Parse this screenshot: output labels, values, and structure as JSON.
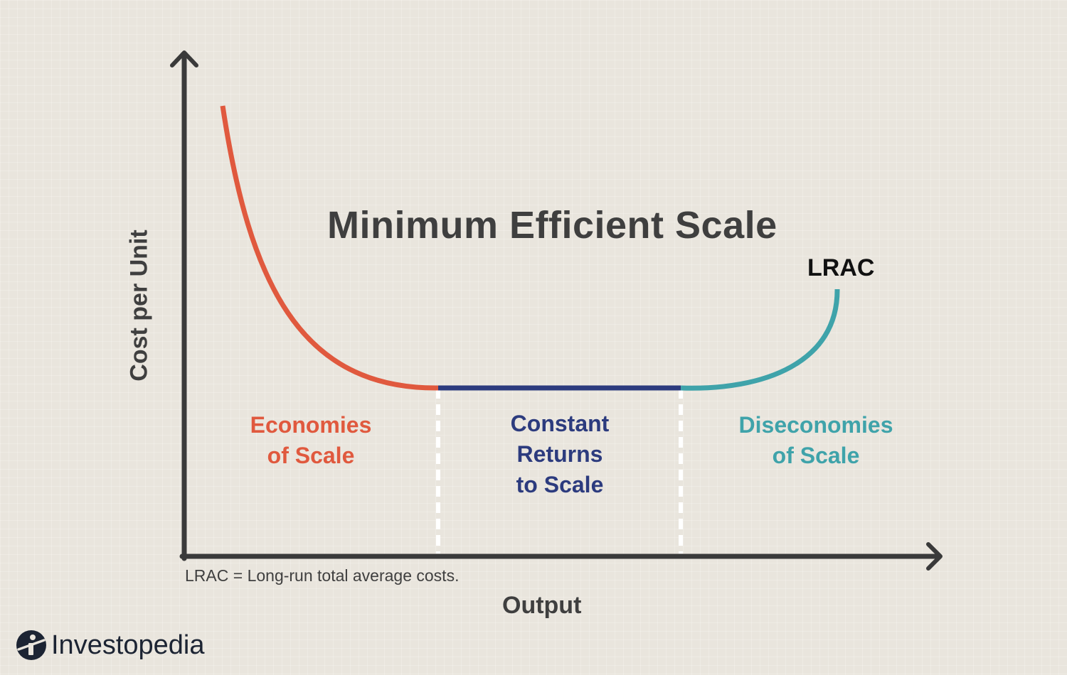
{
  "chart_data": {
    "type": "line",
    "title": "Minimum Efficient Scale",
    "xlabel": "Output",
    "ylabel": "Cost per Unit",
    "curve_label": "LRAC",
    "footnote": "LRAC = Long-run total average costs.",
    "regions": [
      {
        "key": "economies",
        "lines": [
          "Economies",
          "of Scale"
        ],
        "color": "#e0593e"
      },
      {
        "key": "constant",
        "lines": [
          "Constant",
          "Returns",
          "to Scale"
        ],
        "color": "#2c3b7e"
      },
      {
        "key": "diseconomies",
        "lines": [
          "Diseconomies",
          "of Scale"
        ],
        "color": "#3fa3aa"
      }
    ],
    "axis_color": "#3a3a3a",
    "divider_color": "#ffffff",
    "grid": false,
    "legend": "none"
  },
  "brand": {
    "name": "Investopedia",
    "icon": "investopedia-logo-icon"
  }
}
